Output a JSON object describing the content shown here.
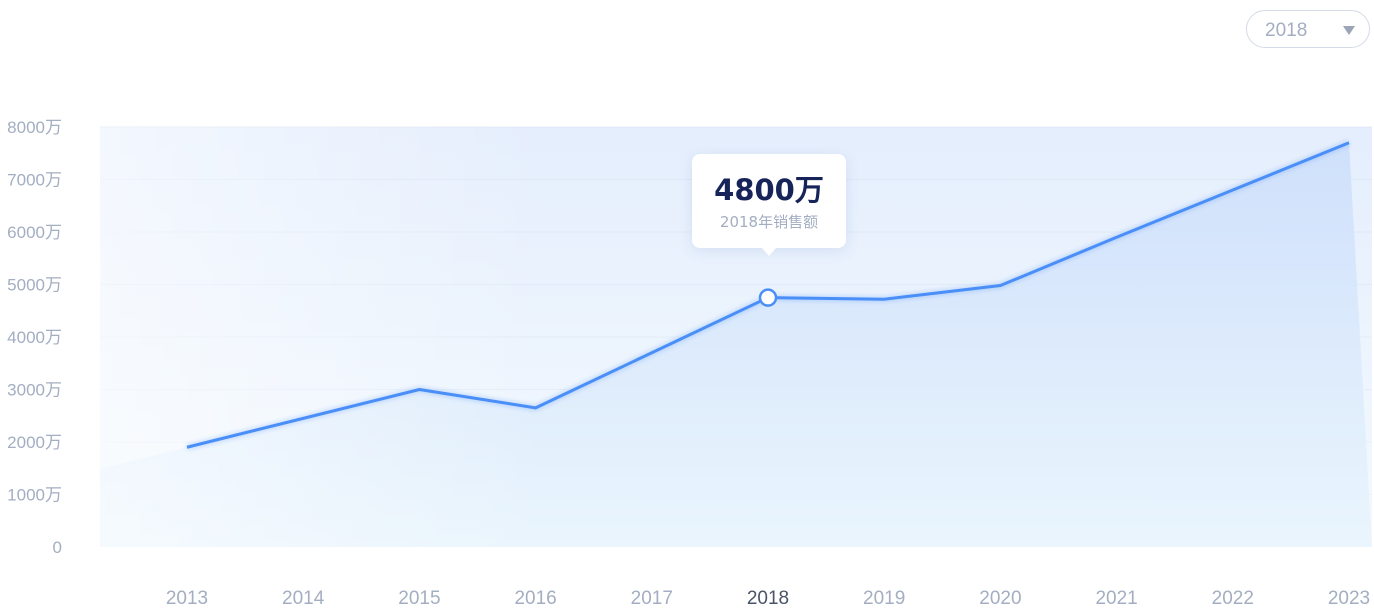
{
  "year_selector": {
    "value": "2018"
  },
  "tooltip": {
    "value": "4800万",
    "label": "2018年销售额"
  },
  "chart_data": {
    "type": "area",
    "title": "",
    "xlabel": "",
    "ylabel": "",
    "x": [
      "2013",
      "2014",
      "2015",
      "2016",
      "2017",
      "2018",
      "2019",
      "2020",
      "2021",
      "2022",
      "2023"
    ],
    "values": [
      1900,
      2450,
      3000,
      2650,
      3700,
      4750,
      4720,
      4980,
      5900,
      6800,
      7700
    ],
    "ylim": [
      0,
      8000
    ],
    "yticks": [
      0,
      1000,
      2000,
      3000,
      4000,
      5000,
      6000,
      7000,
      8000
    ],
    "ytick_labels": [
      "0",
      "1000万",
      "2000万",
      "3000万",
      "4000万",
      "5000万",
      "6000万",
      "7000万",
      "8000万"
    ],
    "highlight_index": 5,
    "grid": true,
    "colors": {
      "line": "#4a8ef7",
      "fill_top": "#cfe0fb",
      "fill_bottom": "#eaf5fd",
      "grid": "#e9edf3",
      "axis_text": "#a3aec2",
      "axis_text_active": "#4a5468"
    }
  }
}
